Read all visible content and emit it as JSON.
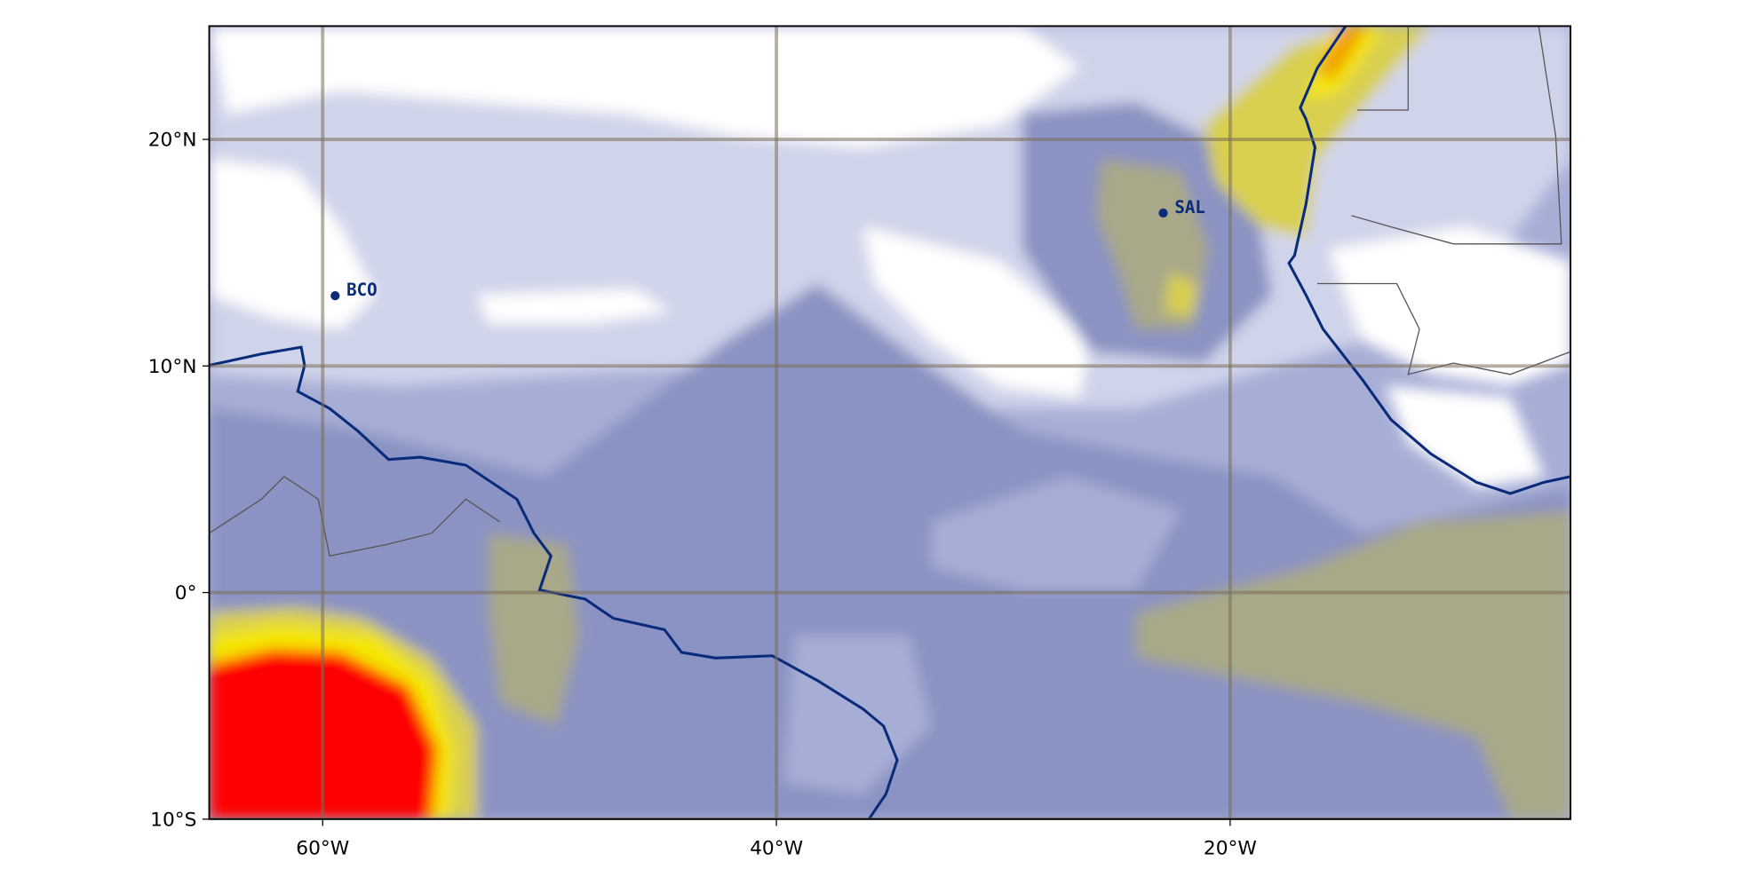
{
  "map": {
    "xlim": [
      -65,
      -5
    ],
    "ylim": [
      -10,
      25
    ],
    "xticks": [
      {
        "value": -60,
        "label": "60°W"
      },
      {
        "value": -40,
        "label": "40°W"
      },
      {
        "value": -20,
        "label": "20°W"
      }
    ],
    "yticks": [
      {
        "value": 20,
        "label": "20°N"
      },
      {
        "value": 10,
        "label": "10°N"
      },
      {
        "value": 0,
        "label": "0°"
      },
      {
        "value": -10,
        "label": "10°S"
      }
    ],
    "stations": [
      {
        "name": "BCO",
        "lon": -59.45,
        "lat": 13.1
      },
      {
        "name": "SAL",
        "lon": -22.95,
        "lat": 16.75
      }
    ]
  }
}
